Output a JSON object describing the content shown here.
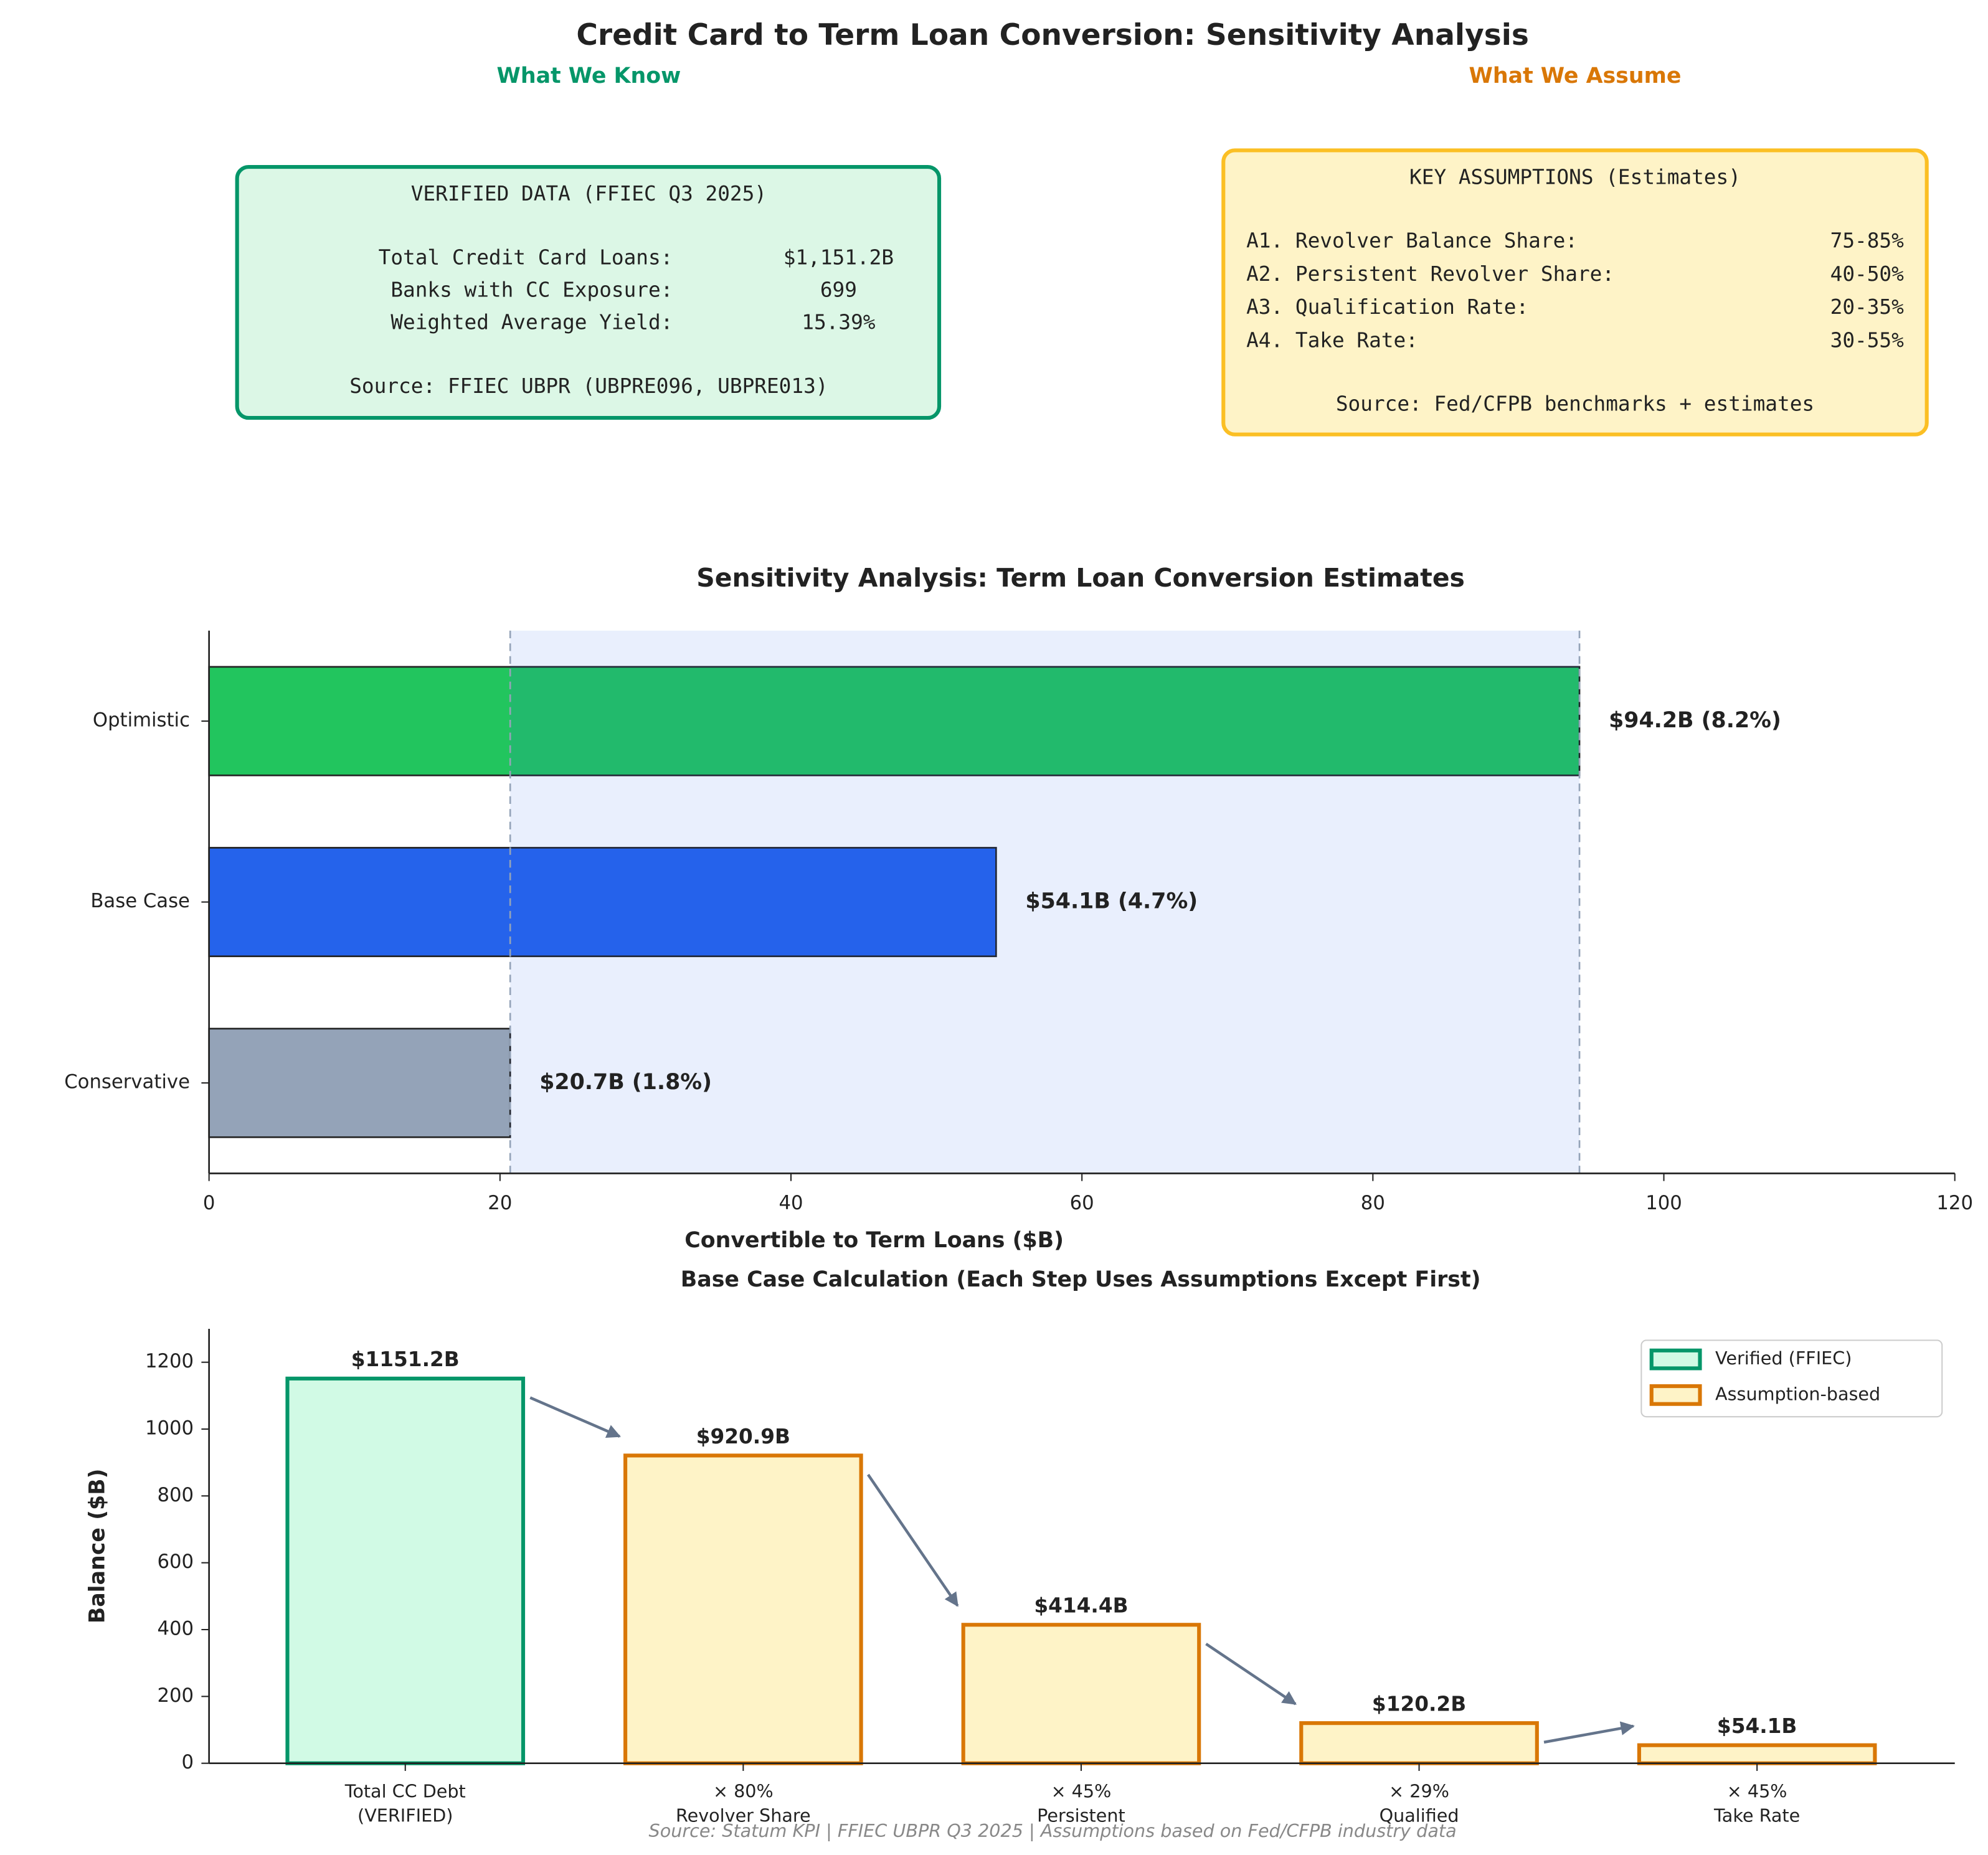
{
  "title": "Credit Card to Term Loan Conversion: Sensitivity Analysis",
  "know_heading": "What We Know",
  "assume_heading": "What We Assume",
  "verified_box": {
    "title": "VERIFIED DATA (FFIEC Q3 2025)",
    "rows": [
      [
        "Total Credit Card Loans:",
        "$1,151.2B"
      ],
      [
        "Banks with CC Exposure:",
        "699"
      ],
      [
        "Weighted Average Yield:",
        "15.39%"
      ]
    ],
    "source": "Source: FFIEC UBPR (UBPRE096, UBPRE013)"
  },
  "assumptions_box": {
    "title": "KEY ASSUMPTIONS (Estimates)",
    "rows": [
      [
        "A1. Revolver Balance Share:",
        "75-85%"
      ],
      [
        "A2. Persistent Revolver Share:",
        "40-50%"
      ],
      [
        "A3. Qualification Rate:",
        "20-35%"
      ],
      [
        "A4. Take Rate:",
        "30-55%"
      ]
    ],
    "source": "Source: Fed/CFPB benchmarks + estimates"
  },
  "chart_data": [
    {
      "type": "bar",
      "orientation": "horizontal",
      "title": "Sensitivity Analysis: Term Loan Conversion Estimates",
      "xlabel": "Convertible to Term Loans ($B)",
      "categories": [
        "Optimistic",
        "Base Case",
        "Conservative"
      ],
      "values": [
        94.2,
        54.1,
        20.7
      ],
      "value_labels": [
        "$94.2B (8.2%)",
        "$54.1B (4.7%)",
        "$20.7B (1.8%)"
      ],
      "colors": [
        "#22c55e",
        "#2563eb",
        "#94a3b8"
      ],
      "range_shading": true,
      "xlim": [
        0,
        120
      ],
      "xticks": [
        0,
        20,
        40,
        60,
        80,
        100,
        120
      ]
    },
    {
      "type": "bar",
      "orientation": "vertical",
      "title": "Base Case Calculation (Each Step Uses Assumptions Except First)",
      "ylabel": "Balance ($B)",
      "categories": [
        "Total CC Debt\n(VERIFIED)",
        "× 80%\nRevolver Share",
        "× 45%\nPersistent",
        "× 29%\nQualified",
        "× 45%\nTake Rate"
      ],
      "series": [
        {
          "name": "Verified (FFIEC)",
          "color": "#059669",
          "fill": "#d1fae5",
          "values": [
            1151.2,
            null,
            null,
            null,
            null
          ],
          "value_labels": [
            "$1151.2B",
            null,
            null,
            null,
            null
          ]
        },
        {
          "name": "Assumption-based",
          "color": "#d97706",
          "fill": "#fef3c7",
          "values": [
            null,
            920.9,
            414.4,
            120.2,
            54.1
          ],
          "value_labels": [
            null,
            "$920.9B",
            "$414.4B",
            "$120.2B",
            "$54.1B"
          ]
        }
      ],
      "flow_arrows": true,
      "legend": "upper right",
      "ylim": [
        0,
        1300
      ],
      "yticks": [
        0,
        200,
        400,
        600,
        800,
        1000,
        1200
      ]
    }
  ],
  "footer": "Source: Statum KPI  |  FFIEC UBPR Q3 2025  |  Assumptions based on Fed/CFPB industry data"
}
